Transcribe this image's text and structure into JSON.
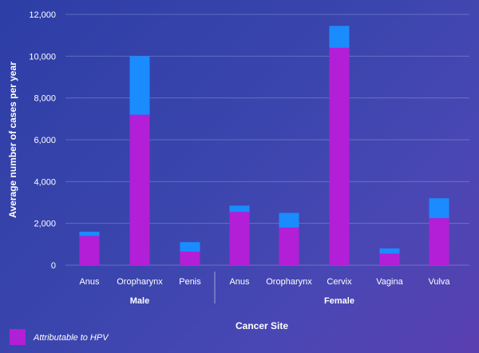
{
  "chart_data": {
    "type": "bar",
    "stacked": true,
    "title": "",
    "xlabel": "Cancer Site",
    "ylabel": "Average number of cases per year",
    "ylim": [
      0,
      12000
    ],
    "yticks": [
      0,
      2000,
      4000,
      6000,
      8000,
      10000,
      12000
    ],
    "ytick_labels": [
      "0",
      "2,000",
      "4,000",
      "6,000",
      "8,000",
      "10,000",
      "12,000"
    ],
    "grid": true,
    "groups": [
      {
        "label": "Male",
        "categories": [
          "Anus",
          "Oropharynx",
          "Penis"
        ]
      },
      {
        "label": "Female",
        "categories": [
          "Anus",
          "Oropharynx",
          "Cervix",
          "Vagina",
          "Vulva"
        ]
      }
    ],
    "categories": [
      "Anus",
      "Oropharynx",
      "Penis",
      "Anus",
      "Oropharynx",
      "Cervix",
      "Vagina",
      "Vulva"
    ],
    "series": [
      {
        "name": "Attributable to HPV",
        "color": "#b21fd6",
        "values": [
          1400,
          7200,
          650,
          2550,
          1800,
          10400,
          550,
          2250
        ]
      },
      {
        "color": "#1a8cff",
        "values": [
          200,
          2800,
          450,
          300,
          700,
          1050,
          250,
          950
        ]
      }
    ],
    "legend": {
      "position": "bottom-left",
      "label": "Attributable to HPV",
      "color": "#b21fd6"
    }
  }
}
